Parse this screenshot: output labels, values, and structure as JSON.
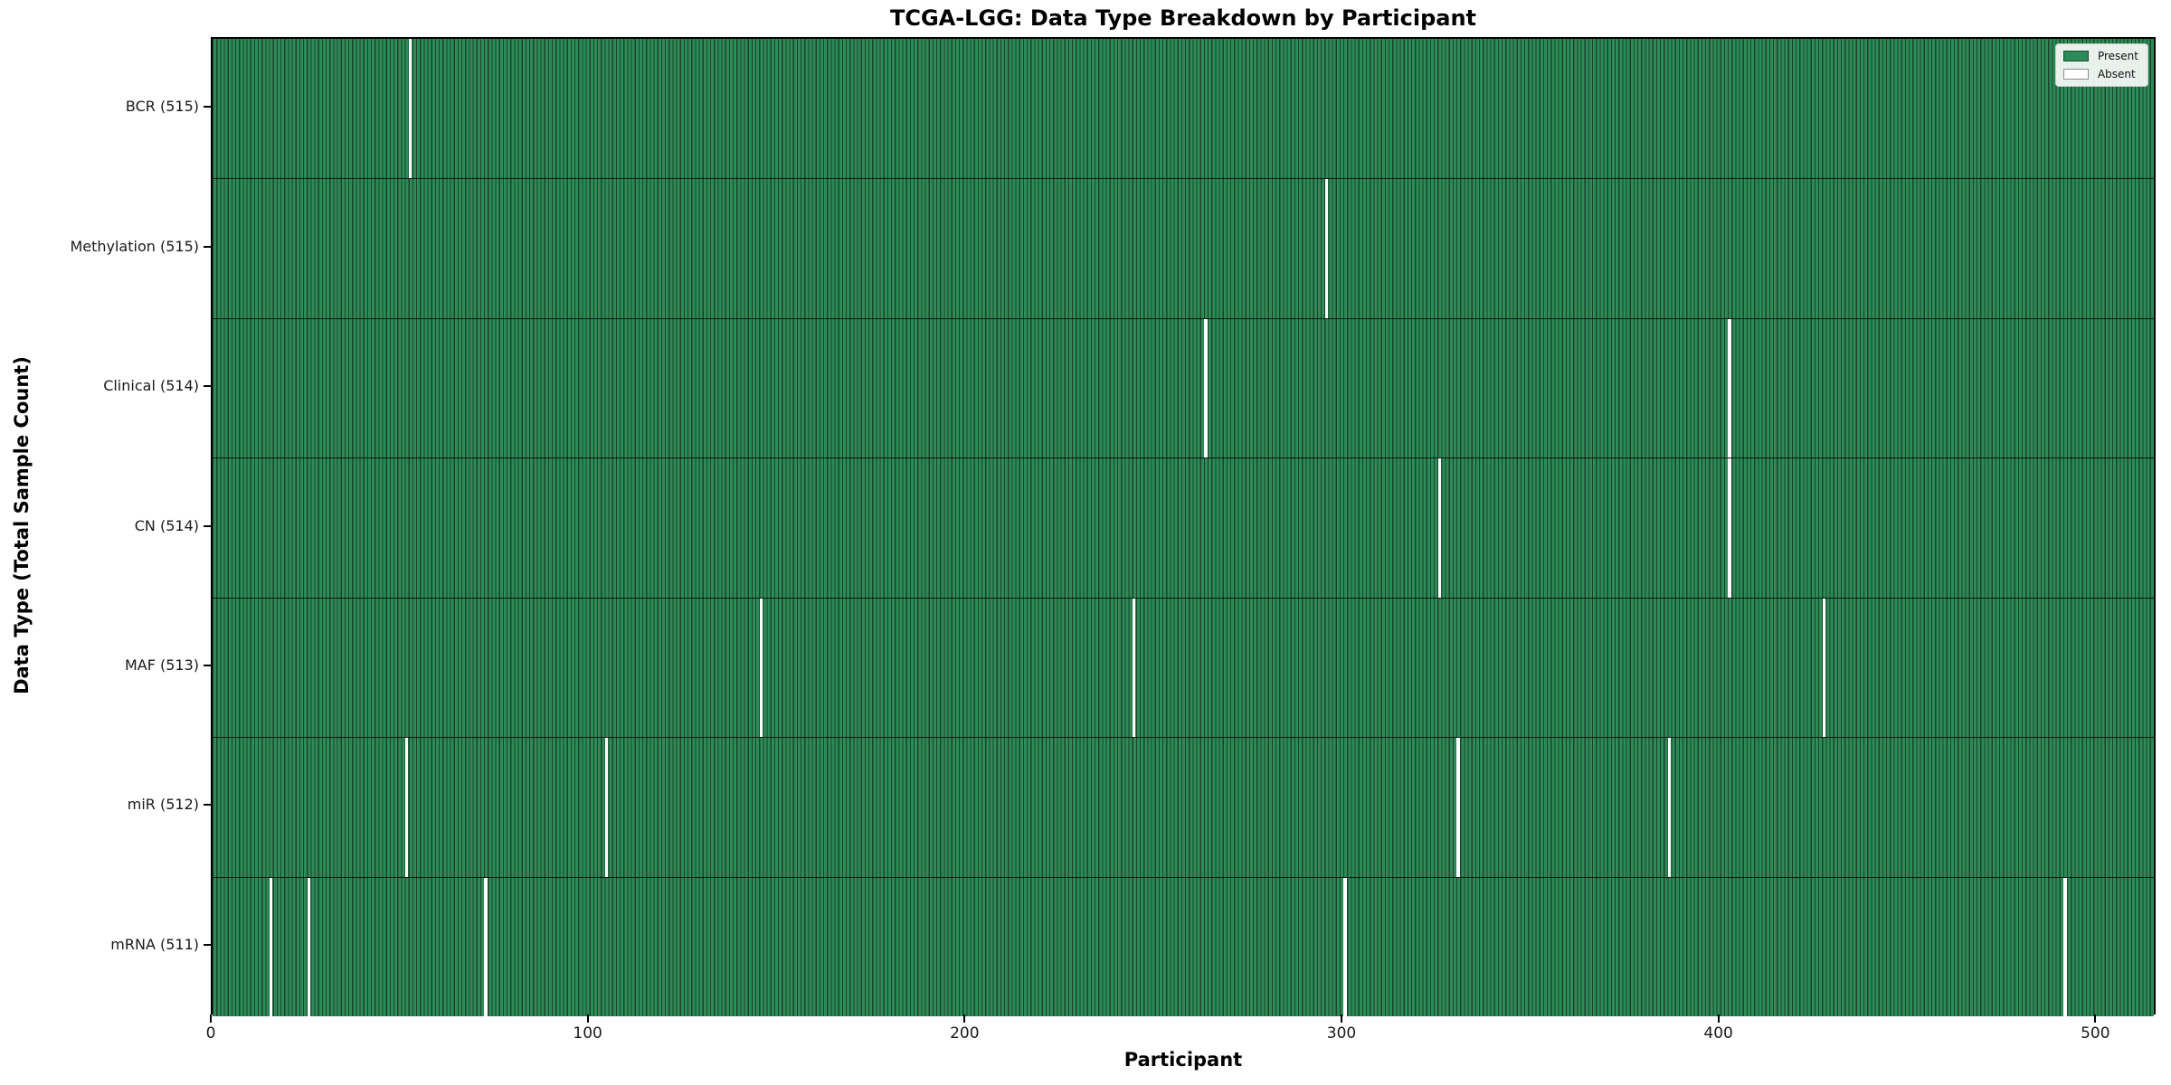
{
  "title": "TCGA-LGG: Data Type Breakdown by Participant",
  "colors": {
    "present": "#2e8b57",
    "absent": "#ffffff",
    "bar_edge": "rgba(0,0,0,0.5)",
    "background": "#ffffff"
  },
  "legend": {
    "entries": [
      {
        "label": "Present",
        "color": "#2e8b57"
      },
      {
        "label": "Absent",
        "color": "#ffffff"
      }
    ]
  },
  "chart_data": {
    "type": "heatmap",
    "title": "TCGA-LGG: Data Type Breakdown by Participant",
    "xlabel": "Participant",
    "ylabel": "Data Type (Total Sample Count)",
    "xlim": [
      0,
      516
    ],
    "n_participants": 516,
    "x_ticks": [
      0,
      100,
      200,
      300,
      400,
      500
    ],
    "grid": false,
    "legend_position": "upper right",
    "legend": [
      {
        "label": "Present",
        "color": "#2e8b57"
      },
      {
        "label": "Absent",
        "color": "#ffffff"
      }
    ],
    "rows": [
      {
        "label": "BCR (515)",
        "data_type": "BCR",
        "present_count": 515,
        "absent_participants": [
          52
        ]
      },
      {
        "label": "Methylation (515)",
        "data_type": "Methylation",
        "present_count": 515,
        "absent_participants": [
          295
        ]
      },
      {
        "label": "Clinical (514)",
        "data_type": "Clinical",
        "present_count": 514,
        "absent_participants": [
          263,
          402
        ]
      },
      {
        "label": "CN (514)",
        "data_type": "CN",
        "present_count": 514,
        "absent_participants": [
          325,
          402
        ]
      },
      {
        "label": "MAF (513)",
        "data_type": "MAF",
        "present_count": 513,
        "absent_participants": [
          145,
          244,
          427
        ]
      },
      {
        "label": "miR (512)",
        "data_type": "miR",
        "present_count": 512,
        "absent_participants": [
          51,
          104,
          330,
          386
        ]
      },
      {
        "label": "mRNA (511)",
        "data_type": "mRNA",
        "present_count": 511,
        "absent_participants": [
          15,
          25,
          72,
          300,
          491
        ]
      }
    ]
  }
}
